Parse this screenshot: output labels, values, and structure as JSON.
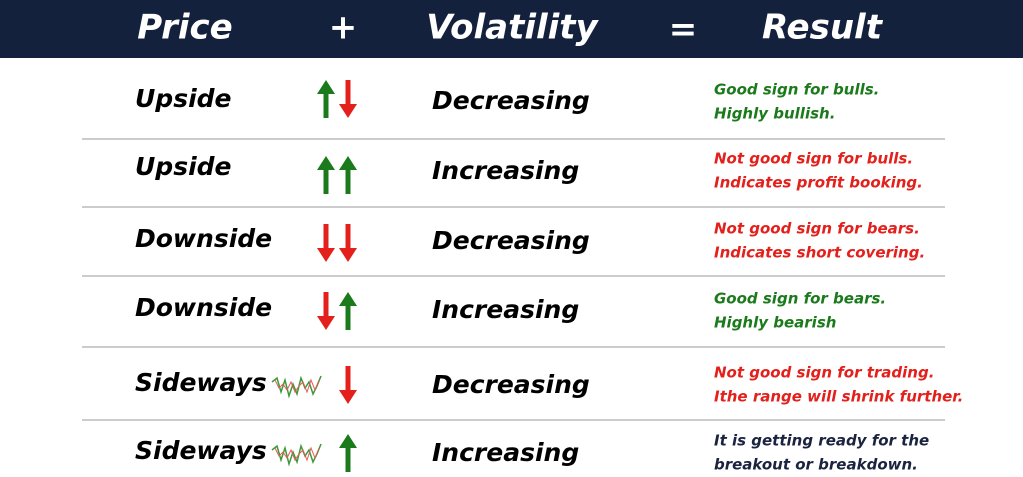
{
  "header": [
    "Price",
    "+",
    "Volatility",
    "=",
    "Result"
  ],
  "rows": [
    {
      "price": "Upside",
      "volatility": "Decreasing",
      "result": [
        "Good sign for bulls.",
        "Highly bullish."
      ]
    },
    {
      "price": "Upside",
      "volatility": "Increasing",
      "result": [
        "Not good sign for bulls.",
        "Indicates profit booking."
      ]
    },
    {
      "price": "Downside",
      "volatility": "Decreasing",
      "result": [
        "Not good sign for bears.",
        "Indicates short covering."
      ]
    },
    {
      "price": "Downside",
      "volatility": "Increasing",
      "result": [
        "Good sign for bears.",
        "Highly bearish"
      ]
    },
    {
      "price": "Sideways",
      "volatility": "Decreasing",
      "result": [
        "Not good sign for trading.",
        "Ithe range will shrink further."
      ]
    },
    {
      "price": "Sideways",
      "volatility": "Increasing",
      "result": [
        "It is getting ready for the",
        "breakout or breakdown."
      ]
    }
  ]
}
